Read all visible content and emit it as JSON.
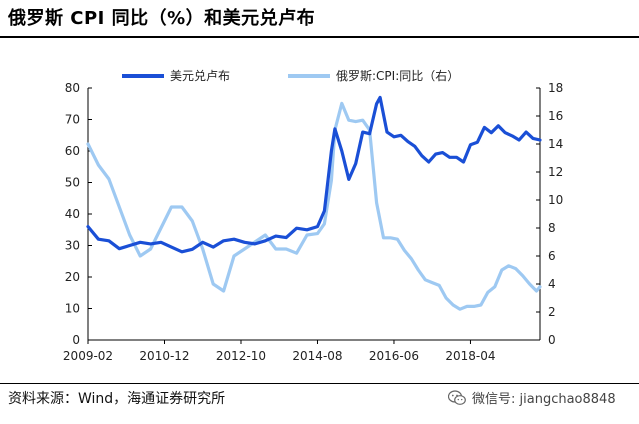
{
  "title": "俄罗斯 CPI 同比（%）和美元兑卢布",
  "source": "资料来源：Wind，海通证券研究所",
  "watermark": "微信号: jiangchao8848",
  "watermark_icon": "wechat-icon",
  "chart_data": {
    "type": "line",
    "x_ticks": [
      "2009-02",
      "2010-12",
      "2012-10",
      "2014-08",
      "2016-06",
      "2018-04"
    ],
    "x_range": [
      "2009-02",
      "2019-12"
    ],
    "y_left": {
      "min": 0,
      "max": 80,
      "ticks": [
        0,
        10,
        20,
        30,
        40,
        50,
        60,
        70,
        80
      ]
    },
    "y_right": {
      "min": 0,
      "max": 18,
      "ticks": [
        0,
        2,
        4,
        6,
        8,
        10,
        12,
        14,
        16,
        18
      ]
    },
    "grid": false,
    "legend_position": "top",
    "series": [
      {
        "name": "美元兑卢布",
        "axis": "left",
        "color": "#1a4fd6",
        "points": [
          [
            "2009-02",
            36
          ],
          [
            "2009-05",
            32
          ],
          [
            "2009-08",
            31.5
          ],
          [
            "2009-11",
            29
          ],
          [
            "2010-02",
            30
          ],
          [
            "2010-05",
            31
          ],
          [
            "2010-08",
            30.5
          ],
          [
            "2010-11",
            31
          ],
          [
            "2011-02",
            29.5
          ],
          [
            "2011-05",
            28
          ],
          [
            "2011-08",
            28.8
          ],
          [
            "2011-11",
            31
          ],
          [
            "2012-02",
            29.5
          ],
          [
            "2012-05",
            31.5
          ],
          [
            "2012-08",
            32
          ],
          [
            "2012-11",
            31
          ],
          [
            "2013-02",
            30.5
          ],
          [
            "2013-05",
            31.5
          ],
          [
            "2013-08",
            33
          ],
          [
            "2013-11",
            32.5
          ],
          [
            "2014-02",
            35.5
          ],
          [
            "2014-05",
            35
          ],
          [
            "2014-08",
            36
          ],
          [
            "2014-10",
            41
          ],
          [
            "2014-12",
            60
          ],
          [
            "2015-01",
            67
          ],
          [
            "2015-03",
            60
          ],
          [
            "2015-05",
            51
          ],
          [
            "2015-07",
            56
          ],
          [
            "2015-09",
            66
          ],
          [
            "2015-11",
            65.5
          ],
          [
            "2016-01",
            75
          ],
          [
            "2016-02",
            77
          ],
          [
            "2016-04",
            66
          ],
          [
            "2016-06",
            64.5
          ],
          [
            "2016-08",
            65
          ],
          [
            "2016-10",
            63
          ],
          [
            "2016-12",
            61.5
          ],
          [
            "2017-02",
            58.5
          ],
          [
            "2017-04",
            56.5
          ],
          [
            "2017-06",
            59
          ],
          [
            "2017-08",
            59.5
          ],
          [
            "2017-10",
            58
          ],
          [
            "2017-12",
            58
          ],
          [
            "2018-02",
            56.5
          ],
          [
            "2018-04",
            62
          ],
          [
            "2018-06",
            62.8
          ],
          [
            "2018-08",
            67.5
          ],
          [
            "2018-10",
            65.8
          ],
          [
            "2018-12",
            68
          ],
          [
            "2019-02",
            65.8
          ],
          [
            "2019-04",
            64.8
          ],
          [
            "2019-06",
            63.5
          ],
          [
            "2019-08",
            66
          ],
          [
            "2019-10",
            64
          ],
          [
            "2019-12",
            63.5
          ]
        ]
      },
      {
        "name": "俄罗斯:CPI:同比（右）",
        "axis": "right",
        "color": "#9ec9f2",
        "points": [
          [
            "2009-02",
            14
          ],
          [
            "2009-05",
            12.5
          ],
          [
            "2009-08",
            11.5
          ],
          [
            "2009-11",
            9.5
          ],
          [
            "2010-02",
            7.5
          ],
          [
            "2010-05",
            6
          ],
          [
            "2010-08",
            6.5
          ],
          [
            "2010-11",
            8
          ],
          [
            "2011-02",
            9.5
          ],
          [
            "2011-05",
            9.5
          ],
          [
            "2011-08",
            8.5
          ],
          [
            "2011-11",
            6.5
          ],
          [
            "2012-02",
            4
          ],
          [
            "2012-05",
            3.5
          ],
          [
            "2012-08",
            6
          ],
          [
            "2012-11",
            6.5
          ],
          [
            "2013-02",
            7
          ],
          [
            "2013-05",
            7.5
          ],
          [
            "2013-08",
            6.5
          ],
          [
            "2013-11",
            6.5
          ],
          [
            "2014-02",
            6.2
          ],
          [
            "2014-05",
            7.5
          ],
          [
            "2014-08",
            7.6
          ],
          [
            "2014-10",
            8.3
          ],
          [
            "2014-12",
            11.4
          ],
          [
            "2015-01",
            15
          ],
          [
            "2015-03",
            16.9
          ],
          [
            "2015-05",
            15.7
          ],
          [
            "2015-07",
            15.6
          ],
          [
            "2015-09",
            15.7
          ],
          [
            "2015-11",
            15
          ],
          [
            "2016-01",
            9.8
          ],
          [
            "2016-03",
            7.3
          ],
          [
            "2016-05",
            7.3
          ],
          [
            "2016-07",
            7.2
          ],
          [
            "2016-09",
            6.4
          ],
          [
            "2016-11",
            5.8
          ],
          [
            "2017-01",
            5
          ],
          [
            "2017-03",
            4.3
          ],
          [
            "2017-05",
            4.1
          ],
          [
            "2017-07",
            3.9
          ],
          [
            "2017-09",
            3
          ],
          [
            "2017-11",
            2.5
          ],
          [
            "2018-01",
            2.2
          ],
          [
            "2018-03",
            2.4
          ],
          [
            "2018-05",
            2.4
          ],
          [
            "2018-07",
            2.5
          ],
          [
            "2018-09",
            3.4
          ],
          [
            "2018-11",
            3.8
          ],
          [
            "2019-01",
            5
          ],
          [
            "2019-03",
            5.3
          ],
          [
            "2019-05",
            5.1
          ],
          [
            "2019-07",
            4.6
          ],
          [
            "2019-09",
            4
          ],
          [
            "2019-11",
            3.5
          ],
          [
            "2019-12",
            3.8
          ]
        ]
      }
    ]
  }
}
